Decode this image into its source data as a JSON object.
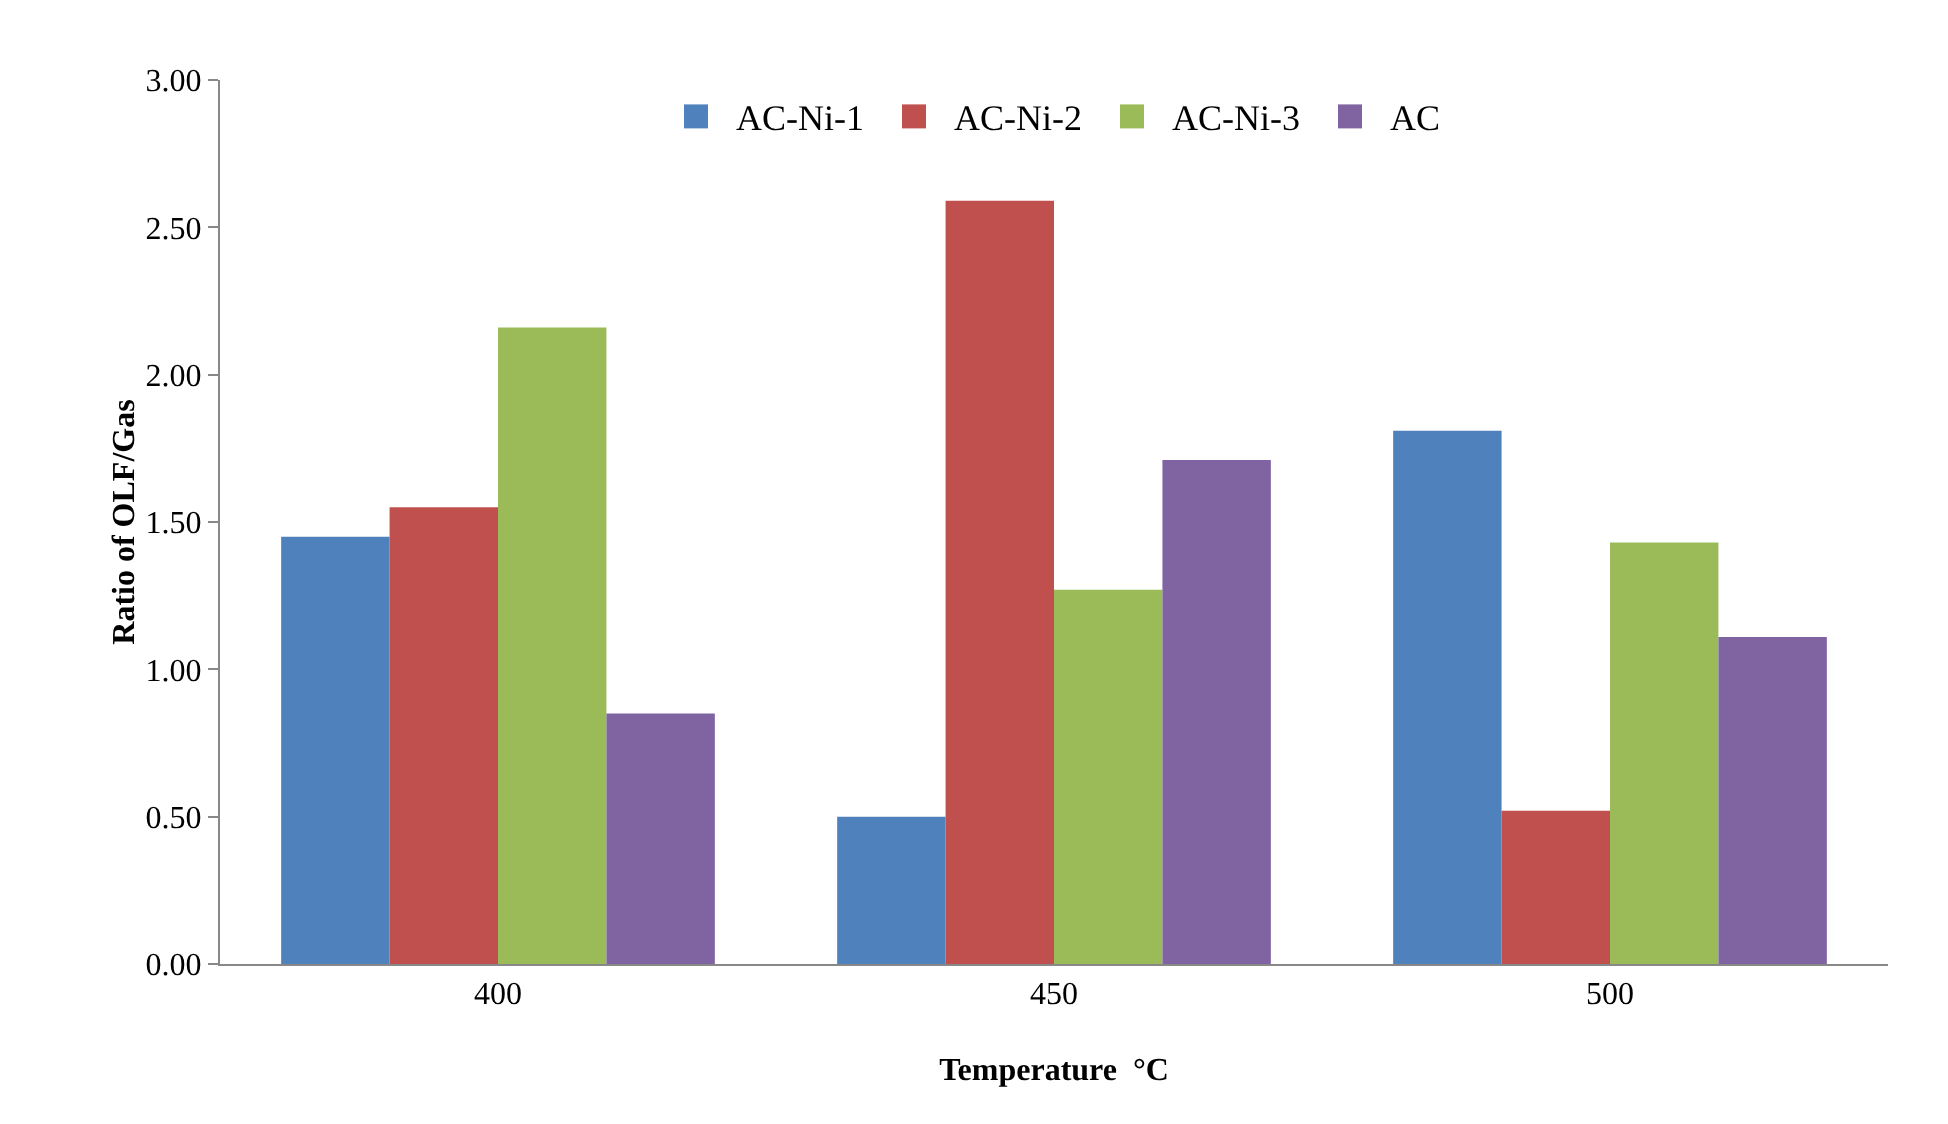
{
  "chart_data": {
    "type": "bar",
    "xlabel": "Temperature  °C",
    "ylabel": "Ratio of OLF/Gas",
    "categories": [
      "400",
      "450",
      "500"
    ],
    "series": [
      {
        "name": "AC-Ni-1",
        "color": "#4f81bd",
        "values": [
          1.45,
          0.5,
          1.81
        ]
      },
      {
        "name": "AC-Ni-2",
        "color": "#c0504d",
        "values": [
          1.55,
          2.59,
          0.52
        ]
      },
      {
        "name": "AC-Ni-3",
        "color": "#9bbb59",
        "values": [
          2.16,
          1.27,
          1.43
        ]
      },
      {
        "name": "AC",
        "color": "#8064a2",
        "values": [
          0.85,
          1.71,
          1.11
        ]
      }
    ],
    "ylim": [
      0,
      3
    ],
    "yticks": [
      {
        "value": 0,
        "label": "0.00"
      },
      {
        "value": 0.5,
        "label": "0.50"
      },
      {
        "value": 1,
        "label": "1.00"
      },
      {
        "value": 1.5,
        "label": "1.50"
      },
      {
        "value": 2,
        "label": "2.00"
      },
      {
        "value": 2.5,
        "label": "2.50"
      },
      {
        "value": 3,
        "label": "3.00"
      }
    ],
    "grid": false,
    "legend": "top"
  }
}
